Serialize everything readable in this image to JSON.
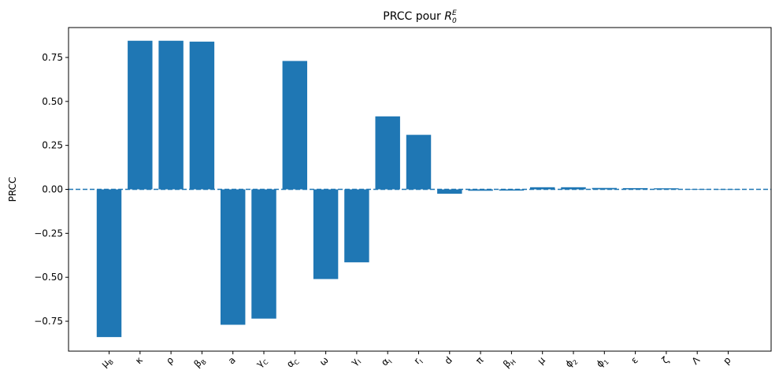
{
  "chart_data": {
    "type": "bar",
    "title": "PRCC pour R0E",
    "title_main": "PRCC pour ",
    "title_symbol": "R",
    "title_sub": "0",
    "title_sup": "E",
    "xlabel": "",
    "ylabel": "PRCC",
    "ylim": [
      -0.92,
      0.92
    ],
    "yticks": [
      -0.75,
      -0.5,
      -0.25,
      0.0,
      0.25,
      0.5,
      0.75
    ],
    "ytick_labels": [
      "−0.75",
      "−0.50",
      "−0.25",
      "0.00",
      "0.25",
      "0.50",
      "0.75"
    ],
    "bar_color": "#1f77b4",
    "baseline_color": "#1f77b4",
    "baseline_style": "dashed",
    "grid": false,
    "categories": [
      {
        "base": "μ",
        "sub": "B"
      },
      {
        "base": "κ",
        "sub": ""
      },
      {
        "base": "ρ",
        "sub": ""
      },
      {
        "base": "β",
        "sub": "B"
      },
      {
        "base": "a",
        "sub": ""
      },
      {
        "base": "γ",
        "sub": "C"
      },
      {
        "base": "α",
        "sub": "C"
      },
      {
        "base": "ω",
        "sub": ""
      },
      {
        "base": "γ",
        "sub": "I"
      },
      {
        "base": "α",
        "sub": "I"
      },
      {
        "base": "r",
        "sub": "I"
      },
      {
        "base": "d",
        "sub": ""
      },
      {
        "base": "π",
        "sub": ""
      },
      {
        "base": "β",
        "sub": "H"
      },
      {
        "base": "μ",
        "sub": ""
      },
      {
        "base": "ϕ",
        "sub": "2"
      },
      {
        "base": "ϕ",
        "sub": "1"
      },
      {
        "base": "ε",
        "sub": ""
      },
      {
        "base": "ζ",
        "sub": ""
      },
      {
        "base": "Λ",
        "sub": ""
      },
      {
        "base": "p",
        "sub": ""
      }
    ],
    "values": [
      -0.84,
      0.845,
      0.845,
      0.84,
      -0.77,
      -0.735,
      0.73,
      -0.51,
      -0.415,
      0.415,
      0.31,
      -0.025,
      -0.008,
      -0.007,
      0.012,
      0.012,
      0.008,
      0.007,
      0.006,
      0.002,
      0.0
    ]
  }
}
